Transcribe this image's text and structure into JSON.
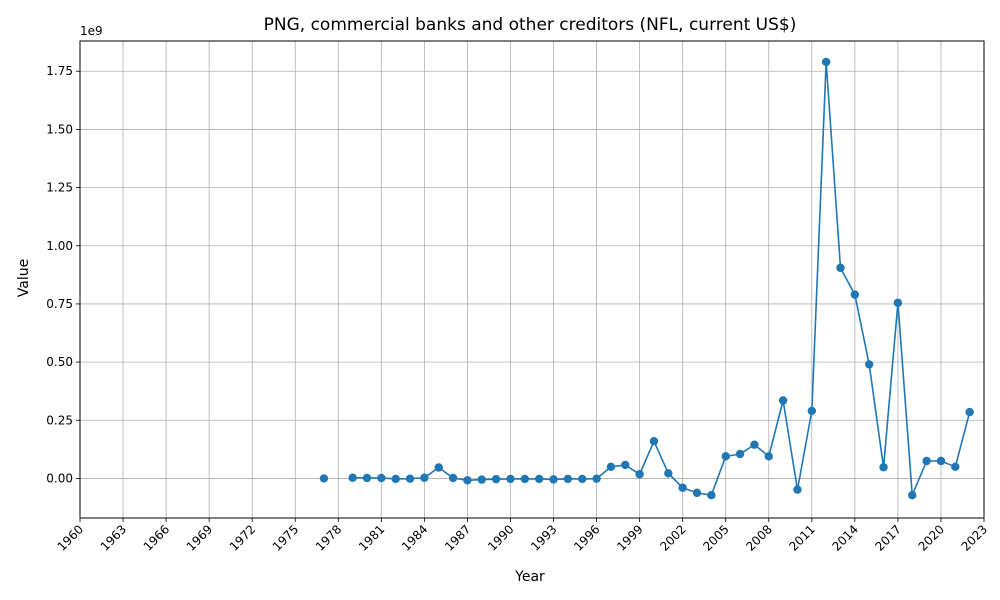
{
  "chart_data": {
    "type": "line",
    "title": "PNG, commercial banks and other creditors (NFL, current US$)",
    "xlabel": "Year",
    "ylabel": "Value",
    "y_offset_label": "1e9",
    "y_scale": 1000000000,
    "xlim": [
      1960,
      2023
    ],
    "ylim": [
      -0.17,
      1.88
    ],
    "x_ticks": [
      1960,
      1963,
      1966,
      1969,
      1972,
      1975,
      1978,
      1981,
      1984,
      1987,
      1990,
      1993,
      1996,
      1999,
      2002,
      2005,
      2008,
      2011,
      2014,
      2017,
      2020,
      2023
    ],
    "y_ticks": [
      "0.00",
      "0.25",
      "0.50",
      "0.75",
      "1.00",
      "1.25",
      "1.50",
      "1.75"
    ],
    "grid": true,
    "color": "#1f77b4",
    "marker": "circle",
    "series": [
      {
        "name": "",
        "points": [
          [
            1977,
            0.0
          ],
          [
            1979,
            0.003
          ],
          [
            1980,
            0.002
          ],
          [
            1981,
            0.002
          ],
          [
            1982,
            -0.002
          ],
          [
            1983,
            -0.001
          ],
          [
            1984,
            0.003
          ],
          [
            1985,
            0.047
          ],
          [
            1986,
            0.002
          ],
          [
            1987,
            -0.008
          ],
          [
            1988,
            -0.005
          ],
          [
            1989,
            -0.003
          ],
          [
            1990,
            -0.002
          ],
          [
            1991,
            -0.002
          ],
          [
            1992,
            -0.002
          ],
          [
            1993,
            -0.004
          ],
          [
            1994,
            -0.002
          ],
          [
            1995,
            -0.002
          ],
          [
            1996,
            -0.001
          ],
          [
            1997,
            0.05
          ],
          [
            1998,
            0.058
          ],
          [
            1999,
            0.018
          ],
          [
            2000,
            0.16
          ],
          [
            2001,
            0.022
          ],
          [
            2002,
            -0.04
          ],
          [
            2003,
            -0.062
          ],
          [
            2004,
            -0.072
          ],
          [
            2005,
            0.095
          ],
          [
            2006,
            0.105
          ],
          [
            2007,
            0.145
          ],
          [
            2008,
            0.095
          ],
          [
            2009,
            0.335
          ],
          [
            2010,
            -0.048
          ],
          [
            2011,
            0.29
          ],
          [
            2012,
            1.79
          ],
          [
            2013,
            0.905
          ],
          [
            2014,
            0.79
          ],
          [
            2015,
            0.49
          ],
          [
            2016,
            0.048
          ],
          [
            2017,
            0.755
          ],
          [
            2018,
            -0.072
          ],
          [
            2019,
            0.075
          ],
          [
            2020,
            0.075
          ],
          [
            2021,
            0.05
          ],
          [
            2022,
            0.285
          ]
        ]
      }
    ]
  }
}
